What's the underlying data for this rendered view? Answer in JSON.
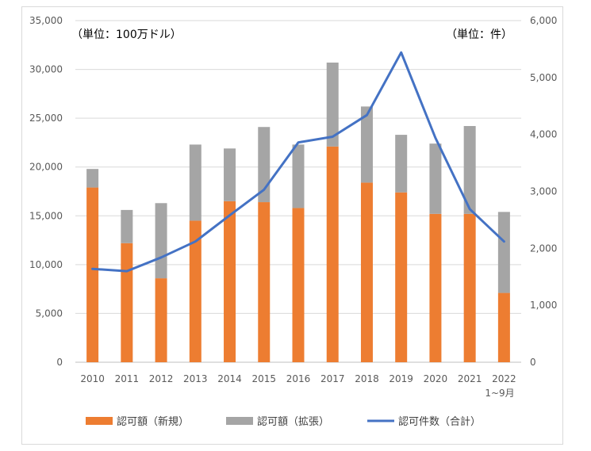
{
  "chart_data": {
    "type": "bar",
    "stacked": true,
    "categories": [
      "2010",
      "2011",
      "2012",
      "2013",
      "2014",
      "2015",
      "2016",
      "2017",
      "2018",
      "2019",
      "2020",
      "2021",
      "2022"
    ],
    "category_notes": {
      "2022": "1~9月"
    },
    "series": [
      {
        "name": "認可額（新規）",
        "kind": "bar",
        "axis": "left",
        "color": "#ED7D31",
        "values": [
          17900,
          12200,
          8600,
          14500,
          16500,
          16400,
          15800,
          22100,
          18400,
          17400,
          15200,
          15200,
          7100
        ]
      },
      {
        "name": "認可額（拡張）",
        "kind": "bar",
        "axis": "left",
        "color": "#A5A5A5",
        "values": [
          1900,
          3400,
          7700,
          7800,
          5400,
          7700,
          6500,
          8600,
          7800,
          5900,
          7200,
          9000,
          8300
        ]
      },
      {
        "name": "認可件数（合計）",
        "kind": "line",
        "axis": "right",
        "color": "#4472C4",
        "values": [
          1640,
          1600,
          1840,
          2120,
          2580,
          3030,
          3860,
          3960,
          4340,
          5440,
          3940,
          2690,
          2120
        ]
      }
    ],
    "left_axis": {
      "unit_label": "（単位：100万ドル）",
      "ylim": [
        0,
        35000
      ],
      "ticks": [
        "0",
        "5,000",
        "10,000",
        "15,000",
        "20,000",
        "25,000",
        "30,000",
        "35,000"
      ]
    },
    "right_axis": {
      "unit_label": "（単位：件）",
      "ylim": [
        0,
        6000
      ],
      "ticks": [
        "0",
        "1,000",
        "2,000",
        "3,000",
        "4,000",
        "5,000",
        "6,000"
      ]
    },
    "gridlines": true,
    "legend_position": "bottom"
  }
}
